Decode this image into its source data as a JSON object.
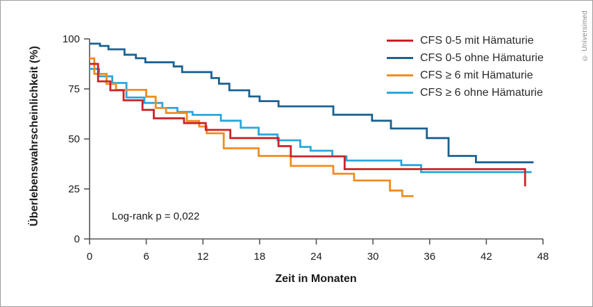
{
  "figure": {
    "copyright": "© Universimed"
  },
  "chart_data": {
    "type": "line",
    "subtype": "kaplan-meier-step",
    "title": "",
    "xlabel": "Zeit in Monaten",
    "ylabel": "Überlebenswahrscheinlichkeit (%)",
    "xlim": [
      0,
      48
    ],
    "ylim": [
      0,
      100
    ],
    "xticks": [
      0,
      6,
      12,
      18,
      24,
      30,
      36,
      42,
      48
    ],
    "yticks": [
      0,
      25,
      50,
      75,
      100
    ],
    "grid": false,
    "legend_position": "top-right",
    "annotation": "Log-rank p = 0,022",
    "axis_color": "#555555",
    "tick_label_color": "#1a1a1a",
    "series": [
      {
        "name": "CFS 0-5 mit Hämaturie",
        "color": "#cc2128",
        "end_x": 46.1,
        "points": [
          [
            0,
            87.5
          ],
          [
            0.9,
            78.8
          ],
          [
            2.2,
            74.3
          ],
          [
            3.6,
            69.3
          ],
          [
            5.6,
            64.5
          ],
          [
            6.8,
            60.3
          ],
          [
            10,
            57.9
          ],
          [
            12.3,
            54.5
          ],
          [
            14.9,
            50.4
          ],
          [
            20,
            46.4
          ],
          [
            21.3,
            41.3
          ],
          [
            27,
            34.9
          ],
          [
            46.1,
            26.3
          ]
        ]
      },
      {
        "name": "CFS 0-5 ohne Hämaturie",
        "color": "#1a6190",
        "end_x": 47,
        "points": [
          [
            0,
            97.6
          ],
          [
            1.1,
            96.5
          ],
          [
            2,
            94.8
          ],
          [
            3.7,
            92.1
          ],
          [
            4.9,
            90.3
          ],
          [
            5.9,
            88.3
          ],
          [
            8.9,
            86.2
          ],
          [
            9.8,
            83.4
          ],
          [
            12.9,
            80.4
          ],
          [
            13.7,
            77.6
          ],
          [
            14.8,
            74.3
          ],
          [
            16.9,
            71.2
          ],
          [
            18,
            68.9
          ],
          [
            20,
            66.3
          ],
          [
            25.8,
            62.1
          ],
          [
            29.9,
            59.1
          ],
          [
            31.9,
            55.2
          ],
          [
            35.7,
            50.4
          ],
          [
            38,
            41.5
          ],
          [
            40.9,
            38.3
          ]
        ]
      },
      {
        "name": "CFS ≥ 6 mit Hämaturie",
        "color": "#f08c1e",
        "end_x": 34.3,
        "points": [
          [
            0,
            90.2
          ],
          [
            0.5,
            82.5
          ],
          [
            1.8,
            77.5
          ],
          [
            2.8,
            74.5
          ],
          [
            6,
            71.1
          ],
          [
            7,
            65.5
          ],
          [
            8.1,
            63
          ],
          [
            10.3,
            59
          ],
          [
            11.6,
            56.2
          ],
          [
            12.4,
            52.8
          ],
          [
            14.2,
            45.3
          ],
          [
            17.9,
            41.5
          ],
          [
            21.3,
            36.5
          ],
          [
            25.8,
            32.6
          ],
          [
            28,
            29.2
          ],
          [
            31.8,
            24.2
          ],
          [
            33.1,
            21.4
          ]
        ]
      },
      {
        "name": "CFS ≥ 6 ohne Hämaturie",
        "color": "#2ba6dc",
        "end_x": 46.8,
        "points": [
          [
            0,
            85
          ],
          [
            1,
            81.3
          ],
          [
            2.4,
            78
          ],
          [
            3.9,
            70.7
          ],
          [
            5.8,
            68
          ],
          [
            7.7,
            65.5
          ],
          [
            9.3,
            63.5
          ],
          [
            10.9,
            62
          ],
          [
            13.9,
            59.1
          ],
          [
            16,
            55.6
          ],
          [
            17.9,
            52.2
          ],
          [
            19.9,
            49.3
          ],
          [
            22.3,
            46
          ],
          [
            23.4,
            44.1
          ],
          [
            25.7,
            41.3
          ],
          [
            27.2,
            39.2
          ],
          [
            33,
            36.9
          ],
          [
            35.1,
            33.4
          ]
        ]
      }
    ]
  }
}
